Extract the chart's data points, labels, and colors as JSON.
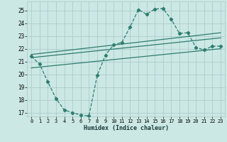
{
  "xlabel": "Humidex (Indice chaleur)",
  "bg_color": "#cce8e4",
  "grid_color": "#aacccc",
  "line_color": "#2e7d6e",
  "xlim": [
    -0.5,
    23.5
  ],
  "ylim": [
    16.7,
    25.7
  ],
  "xticks": [
    0,
    1,
    2,
    3,
    4,
    5,
    6,
    7,
    8,
    9,
    10,
    11,
    12,
    13,
    14,
    15,
    16,
    17,
    18,
    19,
    20,
    21,
    22,
    23
  ],
  "yticks": [
    17,
    18,
    19,
    20,
    21,
    22,
    23,
    24,
    25
  ],
  "line1_x": [
    0,
    1,
    2,
    3,
    4,
    5,
    6,
    7,
    8,
    9,
    10,
    11,
    12,
    13,
    14,
    15,
    16,
    17,
    18,
    19,
    20,
    21,
    22,
    23
  ],
  "line1_y": [
    21.4,
    20.8,
    19.4,
    18.1,
    17.2,
    17.0,
    16.8,
    16.75,
    19.9,
    21.5,
    22.3,
    22.5,
    23.7,
    25.05,
    24.7,
    25.1,
    25.15,
    24.3,
    23.2,
    23.25,
    22.1,
    21.9,
    22.2,
    22.2
  ],
  "line2_x": [
    0,
    23
  ],
  "line2_y": [
    21.55,
    23.25
  ],
  "line3_x": [
    0,
    23
  ],
  "line3_y": [
    21.3,
    22.85
  ],
  "line4_x": [
    0,
    23
  ],
  "line4_y": [
    20.5,
    22.0
  ]
}
